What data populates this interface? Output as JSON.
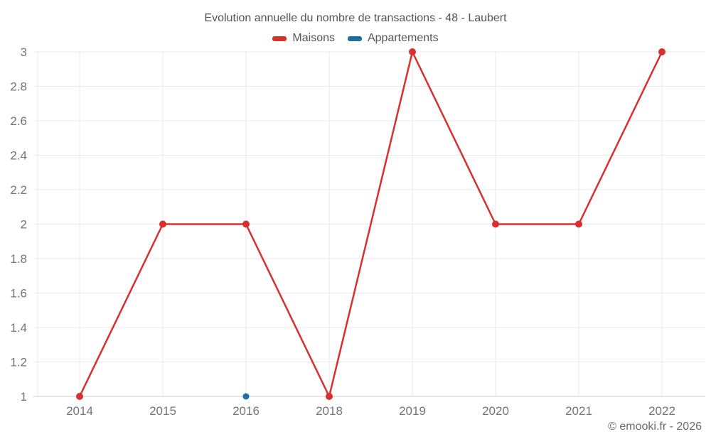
{
  "title": "Evolution annuelle du nombre de transactions - 48 - Laubert",
  "legend": [
    {
      "label": "Maisons",
      "color": "#d7302f"
    },
    {
      "label": "Appartements",
      "color": "#1c6ea4"
    }
  ],
  "footer": {
    "copyright": "© emooki.fr - 2026"
  },
  "chart_data": {
    "type": "line",
    "title": "Evolution annuelle du nombre de transactions - 48 - Laubert",
    "categories": [
      "2014",
      "2015",
      "2016",
      "2018",
      "2019",
      "2020",
      "2021",
      "2022"
    ],
    "series": [
      {
        "name": "Maisons",
        "color": "#d7302f",
        "values": [
          1,
          2,
          2,
          1,
          3,
          2,
          2,
          3
        ]
      },
      {
        "name": "Appartements",
        "color": "#1c6ea4",
        "values": [
          null,
          null,
          1,
          null,
          null,
          null,
          null,
          null
        ]
      }
    ],
    "xlabel": "",
    "ylabel": "",
    "ylim": [
      1,
      3
    ],
    "yticks": [
      "1",
      "1.2",
      "1.4",
      "1.6",
      "1.8",
      "2",
      "2.2",
      "2.4",
      "2.6",
      "2.8",
      "3"
    ],
    "grid": true,
    "legend_position": "top",
    "colors": {
      "grid": "#e9e9e9",
      "axis": "#cccccc",
      "tick_text": "#757575"
    }
  }
}
